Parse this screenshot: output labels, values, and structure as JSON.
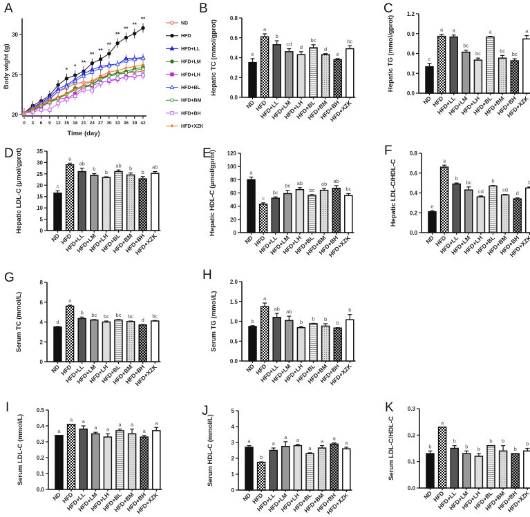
{
  "chart_data": [
    {
      "id": "A",
      "type": "line",
      "panel_label": "A",
      "xlabel": "Time  (day)",
      "ylabel": "Body wight (g)",
      "x": [
        0,
        3,
        6,
        9,
        12,
        15,
        18,
        21,
        24,
        27,
        30,
        33,
        36,
        39,
        42
      ],
      "xticks": [
        "0",
        "3",
        "6",
        "9",
        "12",
        "15",
        "18",
        "21",
        "24",
        "27",
        "30",
        "33",
        "36",
        "39",
        "42"
      ],
      "yticks": [
        "20",
        "25",
        "30"
      ],
      "ylim": [
        20,
        32
      ],
      "xlim": [
        0,
        42
      ],
      "legend_position": "right",
      "significance": [
        "",
        "",
        "",
        "",
        "",
        "*",
        "*",
        "**",
        "**",
        "**",
        "**",
        "**",
        "**",
        "**",
        "**"
      ],
      "series": [
        {
          "name": "ND",
          "color": "#d9534f",
          "marker": "circle-open",
          "err": 0.5,
          "values": [
            20.2,
            20.8,
            21.3,
            21.9,
            22.9,
            23.3,
            23.9,
            24.0,
            24.1,
            24.6,
            25.0,
            25.1,
            25.2,
            25.3,
            25.4
          ]
        },
        {
          "name": "HFD",
          "color": "#111111",
          "marker": "circle",
          "err": 0.6,
          "values": [
            20.2,
            21.1,
            21.7,
            22.4,
            23.7,
            24.5,
            24.9,
            25.4,
            26.4,
            26.9,
            27.6,
            28.9,
            29.6,
            30.1,
            30.8
          ]
        },
        {
          "name": "HFD+LL",
          "color": "#1f1fd0",
          "marker": "triangle",
          "err": 0.5,
          "values": [
            20.2,
            20.9,
            21.5,
            22.2,
            23.2,
            23.7,
            24.4,
            25.1,
            25.6,
            26.0,
            26.2,
            26.3,
            27.0,
            27.0,
            27.1
          ]
        },
        {
          "name": "HFD+LM",
          "color": "#1a7a1a",
          "marker": "circle",
          "err": 0.5,
          "values": [
            20.2,
            20.6,
            21.2,
            21.6,
            22.1,
            22.6,
            23.3,
            23.5,
            23.8,
            24.5,
            24.9,
            25.2,
            25.4,
            25.7,
            25.9
          ]
        },
        {
          "name": "HFD+LH",
          "color": "#c020e0",
          "marker": "square",
          "err": 0.5,
          "values": [
            20.2,
            20.4,
            21.0,
            21.5,
            22.0,
            22.0,
            22.6,
            23.4,
            23.6,
            24.0,
            24.2,
            24.4,
            24.7,
            24.8,
            24.9
          ]
        },
        {
          "name": "HFD+BL",
          "color": "#4a5cf0",
          "marker": "triangle-open",
          "err": 0.5,
          "values": [
            20.2,
            20.8,
            21.4,
            22.0,
            22.9,
            23.5,
            24.2,
            24.8,
            25.3,
            25.8,
            26.1,
            26.3,
            26.7,
            26.9,
            27.0
          ]
        },
        {
          "name": "HFD+BM",
          "color": "#2a9a2a",
          "marker": "circle-open",
          "err": 0.5,
          "values": [
            20.2,
            20.5,
            21.1,
            21.5,
            22.0,
            22.5,
            23.1,
            23.4,
            23.7,
            24.4,
            24.8,
            25.0,
            25.2,
            25.5,
            25.7
          ]
        },
        {
          "name": "HFD+BH",
          "color": "#c060f0",
          "marker": "square-open",
          "err": 0.5,
          "values": [
            20.2,
            20.3,
            20.6,
            20.6,
            21.4,
            21.9,
            22.3,
            23.1,
            23.0,
            23.9,
            24.3,
            24.5,
            24.6,
            24.8,
            24.9
          ]
        },
        {
          "name": "HFD+XZK",
          "color": "#f07020",
          "marker": "star",
          "err": 0.5,
          "values": [
            20.2,
            20.7,
            21.2,
            21.7,
            22.2,
            22.6,
            23.2,
            23.6,
            24.2,
            24.8,
            25.3,
            25.5,
            25.8,
            26.0,
            26.2
          ]
        }
      ]
    },
    {
      "id": "B",
      "type": "bar",
      "panel_label": "B",
      "ylabel": "Hepatic TC (mmol/gprot)",
      "ylim": [
        0,
        0.8
      ],
      "yticks": [
        "0.0",
        "0.2",
        "0.4",
        "0.6",
        "0.8"
      ],
      "categories": [
        "ND",
        "HFD",
        "HFD+LL",
        "HFD+LM",
        "HFD+LH",
        "HFD+BL",
        "HFD+BM",
        "HFD+BH",
        "HFD+XZK"
      ],
      "values": [
        0.35,
        0.61,
        0.53,
        0.46,
        0.43,
        0.5,
        0.43,
        0.38,
        0.49
      ],
      "errors": [
        0.04,
        0.03,
        0.04,
        0.03,
        0.03,
        0.03,
        0.01,
        0.01,
        0.03
      ],
      "letters": [
        "e",
        "a",
        "b",
        "cd",
        "d",
        "bc",
        "d",
        "e",
        "bc"
      ]
    },
    {
      "id": "C",
      "type": "bar",
      "panel_label": "C",
      "ylabel": "Hepatic TG  (mmol/gprot)",
      "ylim": [
        0,
        1.2
      ],
      "yticks": [
        "0.0",
        "0.3",
        "0.6",
        "0.9",
        "1.2"
      ],
      "categories": [
        "ND",
        "HFD",
        "HFD+LL",
        "HFD+LM",
        "HFD+LH",
        "HFD+BL",
        "HFD+BM",
        "HFD+BH",
        "HFD+XZK"
      ],
      "values": [
        0.4,
        0.86,
        0.85,
        0.62,
        0.5,
        0.85,
        0.53,
        0.49,
        0.82
      ],
      "errors": [
        0.05,
        0.03,
        0.03,
        0.03,
        0.03,
        0.01,
        0.04,
        0.03,
        0.05
      ],
      "letters": [
        "c",
        "a",
        "a",
        "bc",
        "bc",
        "a",
        "bc",
        "bc",
        "a"
      ]
    },
    {
      "id": "D",
      "type": "bar",
      "panel_label": "D",
      "ylabel": "Hepatic LDL-C (μmol/gprot)",
      "ylim": [
        0,
        35
      ],
      "yticks": [
        "0",
        "5",
        "10",
        "15",
        "20",
        "25",
        "30",
        "35"
      ],
      "categories": [
        "ND",
        "HFD",
        "HFD+LL",
        "HFD+LM",
        "HFD+LH",
        "HFD+BL",
        "HFD+BM",
        "HFD+BH",
        "HFD+XZK"
      ],
      "values": [
        16.5,
        29,
        26,
        24.3,
        23.4,
        26,
        24.5,
        22.8,
        25.2
      ],
      "errors": [
        1,
        0.7,
        1.5,
        0.8,
        0.3,
        0.7,
        0.9,
        1,
        0.8
      ],
      "letters": [
        "c",
        "a",
        "ab",
        "b",
        "b",
        "ab",
        "b",
        "b",
        "ab"
      ]
    },
    {
      "id": "E",
      "type": "bar",
      "panel_label": "E",
      "ylabel": "Hepatic HDL-C (μmol/gprot)",
      "ylim": [
        0,
        120
      ],
      "yticks": [
        "0",
        "20",
        "40",
        "60",
        "80",
        "100",
        "120"
      ],
      "categories": [
        "ND",
        "HFD",
        "HFD+LL",
        "HFD+LM",
        "HFD+LH",
        "HFD+BL",
        "HFD+BM",
        "HFD+BH",
        "HFD+XZK"
      ],
      "values": [
        80,
        43,
        52,
        59,
        65,
        56.5,
        64,
        67,
        56
      ],
      "errors": [
        4,
        2,
        2,
        5,
        3,
        1,
        3,
        4,
        3
      ],
      "letters": [
        "a",
        "c",
        "bc",
        "bc",
        "ab",
        "bc",
        "ab",
        "ab",
        "bc"
      ]
    },
    {
      "id": "F",
      "type": "bar",
      "panel_label": "F",
      "ylabel": "Hepatic LDL-C/HDL-C",
      "ylim": [
        0,
        0.8
      ],
      "yticks": [
        "0.0",
        "0.2",
        "0.4",
        "0.6",
        "0.8"
      ],
      "categories": [
        "ND",
        "HFD",
        "HFD+LL",
        "HFD+LM",
        "HFD+LH",
        "HFD+BL",
        "HFD+BM",
        "HFD+BH",
        "HFD+XZK"
      ],
      "values": [
        0.21,
        0.66,
        0.49,
        0.43,
        0.36,
        0.47,
        0.38,
        0.34,
        0.45
      ],
      "errors": [
        0.01,
        0.02,
        0.01,
        0.03,
        0.01,
        0.005,
        0.005,
        0.01,
        0.01
      ],
      "letters": [
        "e",
        "a",
        "b",
        "bc",
        "cd",
        "b",
        "cd",
        "d",
        "b"
      ]
    },
    {
      "id": "G",
      "type": "bar",
      "panel_label": "G",
      "ylabel": "Serum TC (mmol/L)",
      "ylim": [
        0,
        8
      ],
      "yticks": [
        "0",
        "2",
        "4",
        "6",
        "8"
      ],
      "categories": [
        "ND",
        "HFD",
        "HFD+LL",
        "HFD+LM",
        "HFD+LH",
        "HFD+BL",
        "HFD+BM",
        "HFD+BH",
        "HFD+XZK"
      ],
      "values": [
        3.5,
        5.6,
        4.35,
        4.2,
        4.0,
        4.2,
        4.05,
        3.7,
        4.1
      ],
      "errors": [
        0.05,
        0.1,
        0.15,
        0.05,
        0.1,
        0.05,
        0.05,
        0.05,
        0.05
      ],
      "letters": [
        "d",
        "a",
        "b",
        "bc",
        "bc",
        "bc",
        "bc",
        "d",
        "bc"
      ]
    },
    {
      "id": "H",
      "type": "bar",
      "panel_label": "H",
      "ylabel": "Serum TG  (mmol/L)",
      "ylim": [
        0,
        2.0
      ],
      "yticks": [
        "0.0",
        "0.5",
        "1.0",
        "1.5",
        "2.0"
      ],
      "categories": [
        "ND",
        "HFD",
        "HFD+LL",
        "HFD+LM",
        "HFD+LH",
        "HFD+BL",
        "HFD+BM",
        "HFD+BH",
        "HFD+XZK"
      ],
      "values": [
        0.87,
        1.37,
        1.1,
        1.02,
        0.84,
        0.94,
        0.88,
        0.83,
        1.04
      ],
      "errors": [
        0.02,
        0.09,
        0.1,
        0.11,
        0.03,
        0.01,
        0.06,
        0.01,
        0.13
      ],
      "letters": [
        "b",
        "a",
        "ab",
        "ab",
        "b",
        "b",
        "b",
        "b",
        "b"
      ]
    },
    {
      "id": "I",
      "type": "bar",
      "panel_label": "I",
      "ylabel": "Serum LDL-C (mmol/L)",
      "ylim": [
        0,
        0.5
      ],
      "yticks": [
        "0.0",
        "0.1",
        "0.2",
        "0.3",
        "0.4",
        "0.5"
      ],
      "categories": [
        "ND",
        "HFD",
        "HFD+LL",
        "HFD+LM",
        "HFD+LH",
        "HFD+BL",
        "HFD+BM",
        "HFD+BH",
        "HFD+XZK"
      ],
      "values": [
        0.34,
        0.41,
        0.38,
        0.35,
        0.33,
        0.37,
        0.35,
        0.33,
        0.37
      ],
      "errors": [
        0,
        0,
        0.02,
        0.01,
        0.02,
        0.01,
        0.03,
        0.01,
        0.02
      ],
      "letters": [
        "a",
        "a",
        "a",
        "a",
        "a",
        "a",
        "a",
        "a",
        "a"
      ]
    },
    {
      "id": "J",
      "type": "bar",
      "panel_label": "J",
      "ylabel": "Serum HDL-C (mmol/L)",
      "ylim": [
        0,
        5
      ],
      "yticks": [
        "0",
        "1",
        "2",
        "3",
        "4",
        "5"
      ],
      "categories": [
        "ND",
        "HFD",
        "HFD+LL",
        "HFD+LM",
        "HFD+LH",
        "HFD+BL",
        "HFD+BM",
        "HFD+BH",
        "HFD+XZK"
      ],
      "values": [
        2.7,
        1.75,
        2.5,
        2.75,
        2.8,
        2.3,
        2.65,
        2.9,
        2.6
      ],
      "errors": [
        0.1,
        0.03,
        0.15,
        0.3,
        0.08,
        0.05,
        0.15,
        0.07,
        0.1
      ],
      "letters": [
        "a",
        "b",
        "a",
        "a",
        "a",
        "a",
        "a",
        "a",
        "a"
      ]
    },
    {
      "id": "K",
      "type": "bar",
      "panel_label": "K",
      "ylabel": "Serum LDL-C/HDL-C",
      "ylim": [
        0,
        0.3
      ],
      "yticks": [
        "0.0",
        "0.1",
        "0.2",
        "0.3"
      ],
      "categories": [
        "ND",
        "HFD",
        "HFD+LL",
        "HFD+LM",
        "HFD+LH",
        "HFD+BL",
        "HFD+BM",
        "HFD+BH",
        "HFD+XZK"
      ],
      "values": [
        0.13,
        0.23,
        0.15,
        0.13,
        0.12,
        0.16,
        0.14,
        0.13,
        0.14
      ],
      "errors": [
        0.01,
        0,
        0.01,
        0.01,
        0.01,
        0,
        0.02,
        0,
        0.01
      ],
      "letters": [
        "b",
        "a",
        "b",
        "b",
        "b",
        "b",
        "b",
        "b",
        "b"
      ]
    }
  ]
}
